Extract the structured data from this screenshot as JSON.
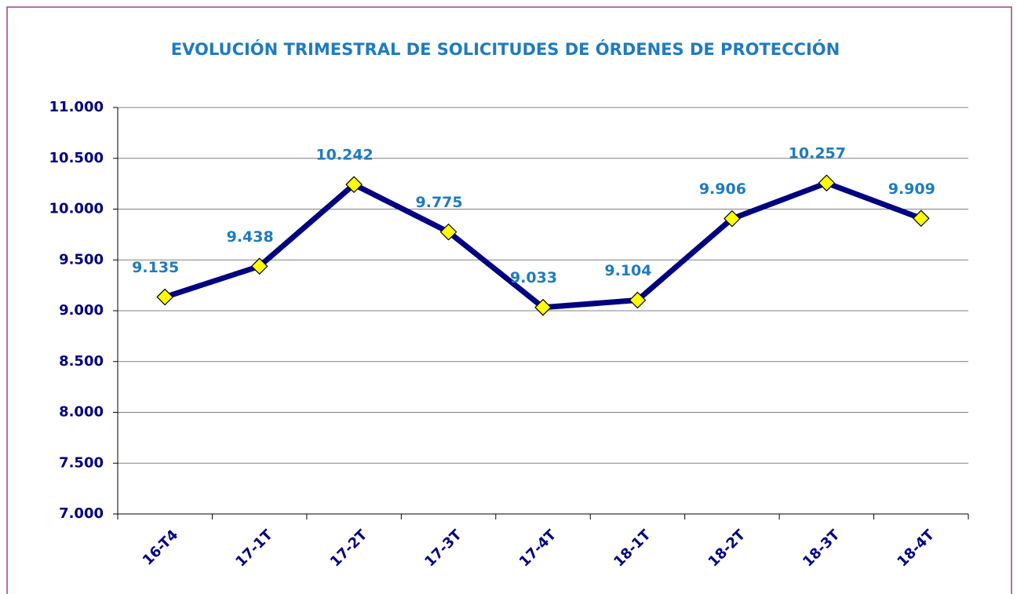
{
  "chart_data": {
    "type": "line",
    "title": "EVOLUCIÓN TRIMESTRAL DE SOLICITUDES DE ÓRDENES DE PROTECCIÓN",
    "categories": [
      "16-T4",
      "17-1T",
      "17-2T",
      "17-3T",
      "17-4T",
      "18-1T",
      "18-2T",
      "18-3T",
      "18-4T"
    ],
    "series": [
      {
        "color": "#000080",
        "values": [
          9135,
          9438,
          10242,
          9775,
          9033,
          9104,
          9906,
          10257,
          9909
        ],
        "value_labels": [
          "9.135",
          "9.438",
          "10.242",
          "9.775",
          "9.033",
          "9.104",
          "9.906",
          "10.257",
          "9.909"
        ]
      }
    ],
    "marker_color": "#ffff00",
    "ylim": [
      7000,
      11000
    ],
    "yticks": [
      {
        "value": 7000,
        "label": "7.000"
      },
      {
        "value": 7500,
        "label": "7.500"
      },
      {
        "value": 8000,
        "label": "8.000"
      },
      {
        "value": 8500,
        "label": "8.500"
      },
      {
        "value": 9000,
        "label": "9.000"
      },
      {
        "value": 9500,
        "label": "9.500"
      },
      {
        "value": 10000,
        "label": "10.000"
      },
      {
        "value": 10500,
        "label": "10.500"
      },
      {
        "value": 11000,
        "label": "11.000"
      }
    ],
    "grid": true
  }
}
